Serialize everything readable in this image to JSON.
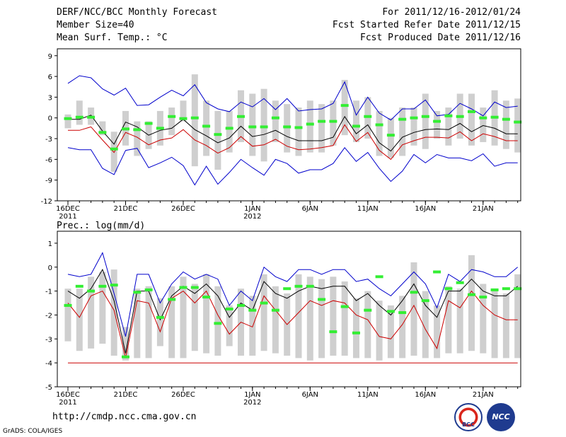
{
  "header": {
    "title": "DERF/NCC/BCC Monthly Forecast",
    "member_size": "Member Size=40",
    "variable1": "Mean Surf. Temp.: °C",
    "period": "For 2011/12/16-2012/01/24",
    "started": "Fcst Started Refer Date 2011/12/15",
    "produced": "Fcst Produced Date 2011/12/16"
  },
  "footer": {
    "url": "http://cmdp.ncc.cma.gov.cn",
    "grads": "GrADS: COLA/IGES",
    "logo_bcc": "BCC",
    "logo_ncc": "NCC"
  },
  "x_axis": {
    "labels": [
      "16DEC",
      "21DEC",
      "26DEC",
      "1JAN",
      "6JAN",
      "11JAN",
      "16JAN",
      "21JAN"
    ],
    "label_day_index": [
      0,
      5,
      10,
      16,
      21,
      26,
      31,
      36
    ],
    "sublabels": [
      {
        "at": 0,
        "text": "2011"
      },
      {
        "at": 16,
        "text": "2012"
      }
    ]
  },
  "chart_data": [
    {
      "type": "line",
      "title": "Mean Surf. Temp.: °C",
      "ylim": [
        -12,
        10
      ],
      "yticks": [
        -12,
        -9,
        -6,
        -3,
        0,
        3,
        6,
        9
      ],
      "days": 40,
      "series": [
        {
          "name": "max",
          "color": "#0000cc",
          "values": [
            5.0,
            6.1,
            5.8,
            4.2,
            3.3,
            4.3,
            1.8,
            1.9,
            3.0,
            4.0,
            3.2,
            4.8,
            2.2,
            1.3,
            0.9,
            2.3,
            1.6,
            2.8,
            1.2,
            2.8,
            1.0,
            1.2,
            1.3,
            2.1,
            5.2,
            0.4,
            3.0,
            0.7,
            -0.3,
            1.3,
            1.3,
            2.6,
            0.3,
            0.5,
            2.1,
            1.3,
            0.3,
            2.3,
            1.5,
            1.7
          ]
        },
        {
          "name": "mean",
          "color": "#000000",
          "values": [
            -0.2,
            -0.2,
            0.4,
            -1.9,
            -3.8,
            -0.6,
            -1.3,
            -2.5,
            -1.8,
            -1.5,
            -0.2,
            -1.7,
            -2.6,
            -3.6,
            -2.9,
            -1.2,
            -2.7,
            -2.4,
            -1.8,
            -2.7,
            -3.3,
            -3.3,
            -3.3,
            -2.8,
            0.2,
            -2.3,
            -1.0,
            -3.6,
            -4.8,
            -2.8,
            -2.1,
            -1.7,
            -1.6,
            -1.7,
            -0.8,
            -2.0,
            -1.1,
            -1.5,
            -2.3,
            -2.3
          ]
        },
        {
          "name": "median",
          "color": "#cc0000",
          "values": [
            -1.8,
            -1.8,
            -1.3,
            -3.2,
            -5.0,
            -2.1,
            -2.8,
            -3.9,
            -3.2,
            -2.9,
            -1.7,
            -3.2,
            -4.0,
            -5.1,
            -4.3,
            -2.7,
            -4.1,
            -3.9,
            -3.1,
            -4.1,
            -4.6,
            -4.5,
            -4.3,
            -4.0,
            -1.0,
            -3.4,
            -2.1,
            -4.7,
            -6.0,
            -3.9,
            -3.3,
            -2.8,
            -2.8,
            -2.9,
            -2.0,
            -3.3,
            -2.3,
            -2.7,
            -3.3,
            -3.3
          ]
        },
        {
          "name": "min",
          "color": "#0000cc",
          "values": [
            -4.3,
            -4.6,
            -4.6,
            -7.3,
            -8.2,
            -4.7,
            -4.4,
            -7.2,
            -6.5,
            -5.7,
            -6.9,
            -9.7,
            -7.0,
            -9.6,
            -7.9,
            -6.0,
            -7.2,
            -8.3,
            -6.0,
            -6.6,
            -8.0,
            -7.5,
            -7.5,
            -6.6,
            -4.3,
            -6.3,
            -5.0,
            -7.3,
            -9.2,
            -7.7,
            -5.3,
            -6.5,
            -5.3,
            -5.8,
            -5.8,
            -6.2,
            -5.2,
            -7.0,
            -6.5,
            -6.5
          ]
        }
      ],
      "box_low": [
        -1.5,
        -1.0,
        -1.0,
        -2.5,
        -7.8,
        -4.0,
        -5.5,
        -4.5,
        -4.0,
        -2.5,
        -0.5,
        -7.0,
        -5.5,
        -7.5,
        -5.0,
        -3.5,
        -5.5,
        -6.3,
        -3.5,
        -5.0,
        -5.5,
        -5.0,
        -5.0,
        -4.0,
        -2.5,
        -3.5,
        -3.0,
        -5.5,
        -5.8,
        -5.5,
        -4.0,
        -4.5,
        -3.0,
        -4.0,
        -3.0,
        -4.0,
        -3.5,
        -4.0,
        -4.5,
        -5.0
      ],
      "box_high": [
        0.5,
        2.5,
        1.5,
        -0.5,
        -2.0,
        1.0,
        -0.5,
        -0.5,
        1.0,
        1.5,
        2.5,
        6.3,
        2.5,
        1.0,
        1.0,
        4.0,
        3.5,
        4.2,
        2.5,
        2.0,
        1.5,
        2.5,
        2.0,
        2.5,
        5.5,
        2.5,
        3.0,
        1.0,
        0.0,
        1.5,
        1.5,
        3.5,
        1.0,
        1.5,
        3.5,
        3.5,
        1.5,
        4.0,
        2.5,
        2.8
      ],
      "obs": [
        -0.1,
        0.1,
        0.1,
        -2.1,
        -4.5,
        -1.6,
        -1.7,
        -0.8,
        -1.5,
        0.2,
        -0.1,
        0.0,
        -1.2,
        -2.4,
        -1.5,
        0.2,
        -1.3,
        -1.3,
        0.0,
        -1.3,
        -1.4,
        -0.9,
        -0.5,
        -0.5,
        1.8,
        -1.2,
        0.2,
        -1.0,
        -2.5,
        -0.2,
        0.0,
        0.2,
        -0.5,
        0.3,
        0.2,
        0.9,
        0.0,
        0.1,
        -0.2,
        -0.6
      ]
    },
    {
      "type": "line",
      "title": "Prec.: log(mm/d)",
      "ylim": [
        -5,
        1.5
      ],
      "yticks": [
        -5,
        -4,
        -3,
        -2,
        -1,
        0,
        1
      ],
      "days": 40,
      "series": [
        {
          "name": "max",
          "color": "#0000cc",
          "values": [
            -0.3,
            -0.4,
            -0.3,
            0.6,
            -1.1,
            -2.9,
            -0.3,
            -0.3,
            -1.5,
            -0.7,
            -0.2,
            -0.5,
            -0.3,
            -0.5,
            -1.6,
            -1.0,
            -1.4,
            0.0,
            -0.4,
            -0.6,
            -0.1,
            -0.1,
            -0.3,
            -0.1,
            -0.1,
            -0.6,
            -0.5,
            -0.9,
            -1.2,
            -0.7,
            -0.2,
            -0.7,
            -1.7,
            -0.3,
            -0.6,
            -0.1,
            -0.2,
            -0.4,
            -0.4,
            0.0
          ]
        },
        {
          "name": "mean",
          "color": "#000000",
          "values": [
            -1.0,
            -1.3,
            -0.9,
            -0.1,
            -1.4,
            -3.6,
            -1.0,
            -1.0,
            -2.2,
            -1.2,
            -0.8,
            -1.1,
            -0.7,
            -1.2,
            -2.1,
            -1.5,
            -1.8,
            -0.6,
            -1.1,
            -1.3,
            -1.0,
            -0.8,
            -0.9,
            -0.8,
            -0.8,
            -1.4,
            -1.1,
            -1.6,
            -2.0,
            -1.4,
            -0.7,
            -1.6,
            -2.1,
            -1.0,
            -1.0,
            -0.5,
            -1.0,
            -1.2,
            -1.2,
            -0.8
          ]
        },
        {
          "name": "median",
          "color": "#cc0000",
          "values": [
            -1.5,
            -2.1,
            -1.2,
            -1.0,
            -1.8,
            -3.8,
            -1.4,
            -1.5,
            -2.7,
            -1.3,
            -1.0,
            -1.5,
            -1.0,
            -2.0,
            -2.8,
            -2.3,
            -2.5,
            -1.2,
            -1.8,
            -2.4,
            -1.9,
            -1.4,
            -1.6,
            -1.4,
            -1.5,
            -2.0,
            -2.2,
            -2.9,
            -3.0,
            -2.4,
            -1.6,
            -2.6,
            -3.4,
            -1.4,
            -1.7,
            -1.0,
            -1.6,
            -2.0,
            -2.2,
            -2.2
          ]
        },
        {
          "name": "min",
          "color": "#cc0000",
          "values": [
            -4.0,
            -4.0,
            -4.0,
            -4.0,
            -4.0,
            -4.0,
            -4.0,
            -4.0,
            -4.0,
            -4.0,
            -4.0,
            -4.0,
            -4.0,
            -4.0,
            -4.0,
            -4.0,
            -4.0,
            -4.0,
            -4.0,
            -4.0,
            -4.0,
            -4.0,
            -4.0,
            -4.0,
            -4.0,
            -4.0,
            -4.0,
            -4.0,
            -4.0,
            -4.0,
            -4.0,
            -4.0,
            -4.0,
            -4.0,
            -4.0,
            -4.0,
            -4.0,
            -4.0,
            -4.0,
            -4.0
          ]
        }
      ],
      "box_low": [
        -3.1,
        -3.5,
        -3.4,
        -3.2,
        -3.7,
        -3.9,
        -3.8,
        -3.8,
        -3.3,
        -3.8,
        -3.8,
        -3.5,
        -3.6,
        -3.7,
        -3.3,
        -3.7,
        -3.7,
        -3.5,
        -3.6,
        -3.7,
        -3.8,
        -3.9,
        -3.8,
        -3.7,
        -3.7,
        -3.8,
        -3.8,
        -3.9,
        -3.8,
        -3.8,
        -3.7,
        -3.8,
        -3.8,
        -3.6,
        -3.6,
        -3.5,
        -3.6,
        -3.8,
        -3.8,
        -3.8
      ],
      "box_high": [
        -0.9,
        -0.9,
        -0.4,
        -0.2,
        -0.1,
        -2.5,
        -0.9,
        -0.8,
        -1.3,
        -0.8,
        -0.4,
        -0.7,
        -0.3,
        -0.8,
        -1.6,
        -0.9,
        -1.2,
        -0.3,
        -0.8,
        -1.1,
        -0.3,
        -0.4,
        -0.5,
        -0.4,
        -0.6,
        -1.3,
        -1.0,
        -1.4,
        -1.6,
        -1.2,
        0.2,
        -1.0,
        -1.6,
        -0.8,
        -0.9,
        0.5,
        -0.7,
        -1.0,
        -1.1,
        -0.3
      ],
      "obs": [
        -1.6,
        -0.8,
        -1.0,
        -0.8,
        -0.75,
        -3.75,
        -1.05,
        -0.95,
        -2.1,
        -1.35,
        -0.85,
        -0.85,
        -1.25,
        -2.35,
        -1.75,
        -1.6,
        -1.8,
        -1.5,
        -1.8,
        -0.9,
        -0.8,
        -0.8,
        -1.35,
        -2.7,
        -1.65,
        -2.75,
        -1.8,
        -0.4,
        -1.85,
        -1.9,
        -1.05,
        -1.4,
        -0.2,
        -0.9,
        -0.65,
        -1.15,
        -1.25,
        -0.95,
        -0.9,
        -0.9
      ]
    }
  ]
}
